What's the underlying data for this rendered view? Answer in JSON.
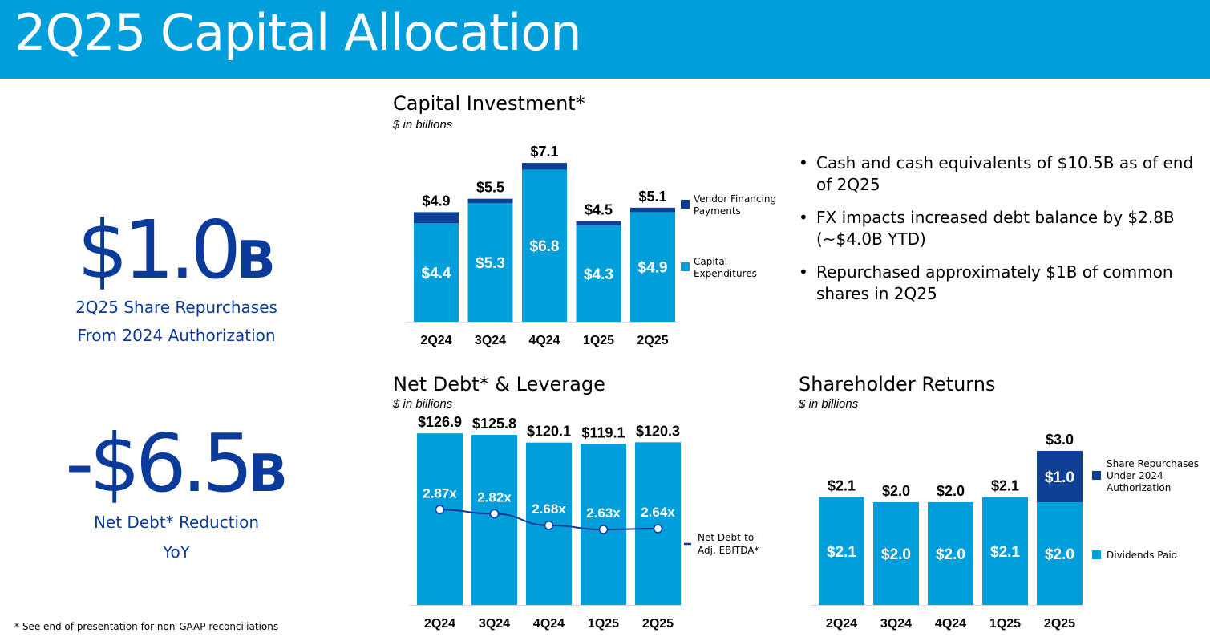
{
  "header": {
    "title": "2Q25 Capital Allocation"
  },
  "kpis": [
    {
      "value": "$1.0",
      "unit": "B",
      "caption_line1": "2Q25 Share Repurchases",
      "caption_line2": "From 2024 Authorization"
    },
    {
      "value": "-$6.5",
      "unit": "B",
      "caption_line1": "Net Debt* Reduction",
      "caption_line2": "YoY"
    }
  ],
  "sections": {
    "capex": {
      "title": "Capital Investment*",
      "subtitle": "$ in billions"
    },
    "netdebt": {
      "title": "Net Debt* & Leverage",
      "subtitle": "$ in billions"
    },
    "returns": {
      "title": "Shareholder Returns",
      "subtitle": "$ in billions"
    }
  },
  "bullets": [
    "Cash and cash equivalents of $10.5B as of end of 2Q25",
    "FX impacts increased debt balance by $2.8B (~$4.0B YTD)",
    "Repurchased approximately $1B of common shares in 2Q25"
  ],
  "footnote": "* See end of presentation for non-GAAP reconciliations",
  "colors": {
    "brand_blue": "#009fdb",
    "dark_blue": "#0b3b9a",
    "navy_series": "#0d3f95"
  },
  "chart_data": [
    {
      "id": "capex",
      "type": "bar",
      "stacked": true,
      "categories": [
        "2Q24",
        "3Q24",
        "4Q24",
        "1Q25",
        "2Q25"
      ],
      "series": [
        {
          "name": "Capital Expenditures",
          "color": "#009fdb",
          "values": [
            4.4,
            5.3,
            6.8,
            4.3,
            4.9
          ],
          "labels": [
            "$4.4",
            "$5.3",
            "$6.8",
            "$4.3",
            "$4.9"
          ]
        },
        {
          "name": "Vendor Financing Payments",
          "color": "#0d3f95",
          "values": [
            0.5,
            0.2,
            0.3,
            0.2,
            0.2
          ],
          "labels": []
        }
      ],
      "totals": [
        "$4.9",
        "$5.5",
        "$7.1",
        "$4.5",
        "$5.1"
      ],
      "legend": [
        {
          "series": 1,
          "line1": "Vendor Financing",
          "line2": "Payments"
        },
        {
          "series": 0,
          "line1": "Capital",
          "line2": "Expenditures"
        }
      ],
      "ylim": [
        0,
        8
      ]
    },
    {
      "id": "netdebt",
      "type": "bar",
      "categories": [
        "2Q24",
        "3Q24",
        "4Q24",
        "1Q25",
        "2Q25"
      ],
      "series": [
        {
          "name": "Net Debt",
          "color": "#009fdb",
          "values": [
            126.9,
            125.8,
            120.1,
            119.1,
            120.3
          ]
        }
      ],
      "totals": [
        "$126.9",
        "$125.8",
        "$120.1",
        "$119.1",
        "$120.3"
      ],
      "line": {
        "name": "Net Debt-to-Adj. EBITDA*",
        "values": [
          2.87,
          2.82,
          2.68,
          2.63,
          2.64
        ],
        "labels": [
          "2.87x",
          "2.82x",
          "2.68x",
          "2.63x",
          "2.64x"
        ],
        "color": "#0b3b9a",
        "legend_line1": "Net Debt-to-",
        "legend_line2": "Adj. EBITDA*"
      },
      "ylim": [
        0,
        130
      ]
    },
    {
      "id": "returns",
      "type": "bar",
      "stacked": true,
      "categories": [
        "2Q24",
        "3Q24",
        "4Q24",
        "1Q25",
        "2Q25"
      ],
      "series": [
        {
          "name": "Dividends Paid",
          "color": "#009fdb",
          "values": [
            2.1,
            2.0,
            2.0,
            2.1,
            2.0
          ],
          "labels": [
            "$2.1",
            "$2.0",
            "$2.0",
            "$2.1",
            "$2.0"
          ]
        },
        {
          "name": "Share Repurchases Under 2024 Authorization",
          "color": "#0d3f95",
          "values": [
            0,
            0,
            0,
            0,
            1.0
          ],
          "labels": [
            "",
            "",
            "",
            "",
            "$1.0"
          ]
        }
      ],
      "totals": [
        "$2.1",
        "$2.0",
        "$2.0",
        "$2.1",
        "$3.0"
      ],
      "legend": [
        {
          "series": 1,
          "line1": "Share Repurchases",
          "line2": "Under 2024",
          "line3": "Authorization"
        },
        {
          "series": 0,
          "line1": "Dividends Paid"
        }
      ],
      "ylim": [
        0,
        3.5
      ]
    }
  ]
}
